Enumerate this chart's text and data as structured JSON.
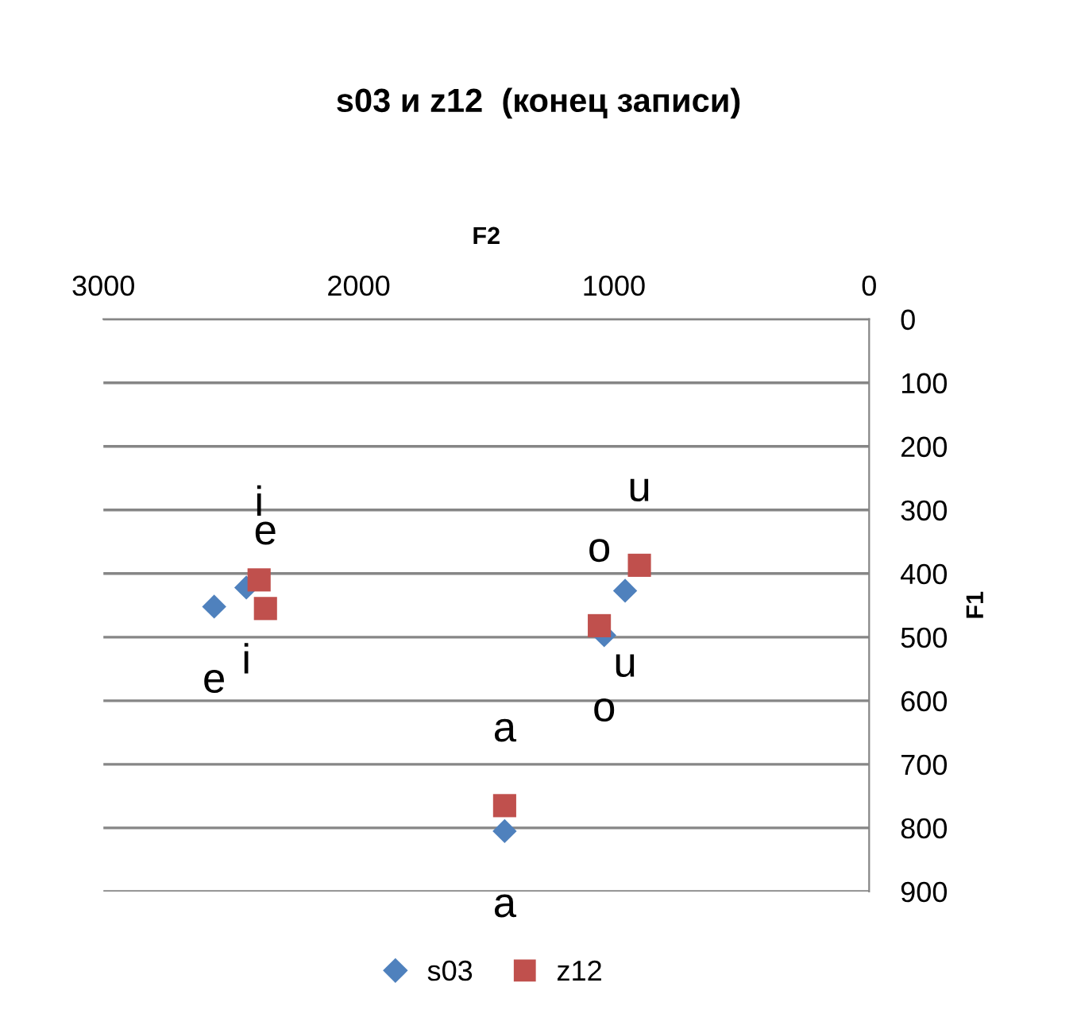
{
  "chart_data": {
    "type": "scatter",
    "title": "s03 и z12  (конец записи)",
    "xlabel": "F2",
    "ylabel": "F1",
    "xlim": [
      3000,
      0
    ],
    "xticks": [
      3000,
      2000,
      1000,
      0
    ],
    "ylim": [
      900,
      0
    ],
    "yticks": [
      0,
      100,
      200,
      300,
      400,
      500,
      600,
      700,
      800,
      900
    ],
    "grid": "y",
    "legend": "bottom",
    "series": [
      {
        "name": "s03",
        "color": "#4f81bd",
        "marker": "diamond",
        "x": [
          2440,
          2566,
          1428,
          1038,
          956
        ],
        "values": [
          422,
          452,
          805,
          497,
          427
        ],
        "value_labels": [
          "i",
          "e",
          "a",
          "o",
          "u"
        ]
      },
      {
        "name": "z12",
        "color": "#c0504d",
        "marker": "square",
        "x": [
          2390,
          2365,
          1428,
          1057,
          900
        ],
        "values": [
          410,
          455,
          765,
          482,
          387
        ],
        "value_labels": [
          "i",
          "e",
          "a",
          "o",
          "u"
        ]
      }
    ]
  }
}
